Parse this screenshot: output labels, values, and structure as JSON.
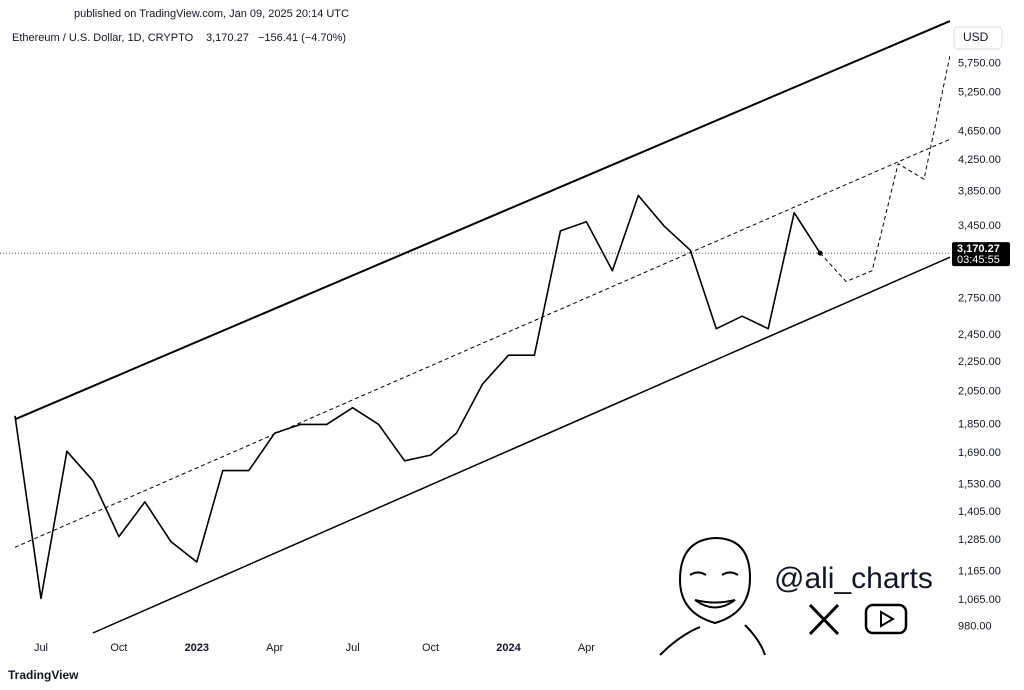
{
  "chart_data": {
    "type": "line",
    "published": "published on TradingView.com, Jan 09, 2025 20:14 UTC",
    "title": "Ethereum / U.S. Dollar, 1D, CRYPTO",
    "ticker_price": "3,170.27",
    "ticker_change": "−156.41 (−4.70%)",
    "currency": "USD",
    "brand": "TradingView",
    "watermark": "@ali_charts",
    "log_scale": true,
    "grid": false,
    "xlim": [
      "2022-06",
      "2025-06"
    ],
    "ylim": [
      910,
      6600
    ],
    "xticks": [
      {
        "value": "2022-07",
        "label": "Jul"
      },
      {
        "value": "2022-10",
        "label": "Oct"
      },
      {
        "value": "2023-01",
        "label": "2023"
      },
      {
        "value": "2023-04",
        "label": "Apr"
      },
      {
        "value": "2023-07",
        "label": "Jul"
      },
      {
        "value": "2023-10",
        "label": "Oct"
      },
      {
        "value": "2024-01",
        "label": "2024"
      },
      {
        "value": "2024-04",
        "label": "Apr"
      }
    ],
    "yticks": [
      {
        "value": 980,
        "label": "980.00"
      },
      {
        "value": 1065,
        "label": "1,065.00"
      },
      {
        "value": 1165,
        "label": "1,165.00"
      },
      {
        "value": 1285,
        "label": "1,285.00"
      },
      {
        "value": 1405,
        "label": "1,405.00"
      },
      {
        "value": 1530,
        "label": "1,530.00"
      },
      {
        "value": 1690,
        "label": "1,690.00"
      },
      {
        "value": 1850,
        "label": "1,850.00"
      },
      {
        "value": 2050,
        "label": "2,050.00"
      },
      {
        "value": 2250,
        "label": "2,250.00"
      },
      {
        "value": 2450,
        "label": "2,450.00"
      },
      {
        "value": 2750,
        "label": "2,750.00"
      },
      {
        "value": 3450,
        "label": "3,450.00"
      },
      {
        "value": 3850,
        "label": "3,850.00"
      },
      {
        "value": 4250,
        "label": "4,250.00"
      },
      {
        "value": 4650,
        "label": "4,650.00"
      },
      {
        "value": 5250,
        "label": "5,250.00"
      },
      {
        "value": 5750,
        "label": "5,750.00"
      }
    ],
    "price_tag": {
      "value": 3170.27,
      "label": "3,170.27",
      "timer": "03:45:55"
    },
    "series": [
      {
        "color": "#000000",
        "dash": false,
        "width": 1.6,
        "x": [
          "2022-06",
          "2022-07",
          "2022-08",
          "2022-09",
          "2022-10",
          "2022-11",
          "2022-12",
          "2023-01",
          "2023-02",
          "2023-03",
          "2023-04",
          "2023-05",
          "2023-06",
          "2023-07",
          "2023-08",
          "2023-09",
          "2023-10",
          "2023-11",
          "2023-12",
          "2024-01",
          "2024-02",
          "2024-03",
          "2024-04",
          "2024-05",
          "2024-06",
          "2024-07",
          "2024-08",
          "2024-09",
          "2024-10",
          "2024-11",
          "2024-12",
          "2025-01"
        ],
        "values": [
          1900,
          1070,
          1700,
          1550,
          1300,
          1450,
          1280,
          1200,
          1600,
          1600,
          1800,
          1850,
          1850,
          1950,
          1850,
          1650,
          1680,
          1800,
          2100,
          2300,
          2300,
          3400,
          3500,
          3000,
          3800,
          3450,
          3200,
          2500,
          2600,
          2500,
          3600,
          3170.27
        ]
      },
      {
        "color": "#000000",
        "dash": true,
        "width": 1,
        "x": [
          "2025-01",
          "2025-02",
          "2025-03",
          "2025-04",
          "2025-05",
          "2025-06"
        ],
        "values": [
          3170.27,
          2900,
          3000,
          4200,
          4000,
          5900
        ]
      },
      {
        "color": "#000000",
        "dash": false,
        "width": 2,
        "x": [
          "2022-06",
          "2025-06"
        ],
        "values": [
          1880,
          6580
        ]
      },
      {
        "color": "#000000",
        "dash": false,
        "width": 1.5,
        "x": [
          "2022-09",
          "2025-06"
        ],
        "values": [
          960,
          3130
        ]
      },
      {
        "color": "#000000",
        "dash": true,
        "width": 1,
        "x": [
          "2022-06",
          "2025-06"
        ],
        "values": [
          1257,
          4537
        ]
      }
    ]
  }
}
